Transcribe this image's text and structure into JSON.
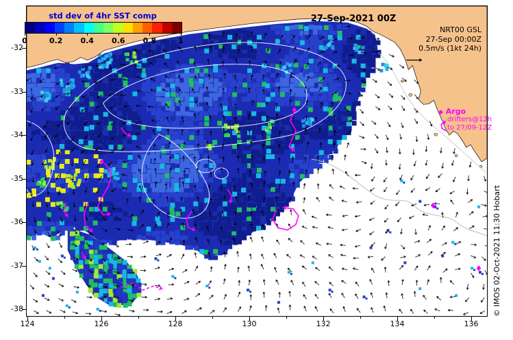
{
  "header": {
    "date_title": "27-Sep-2021 00Z"
  },
  "colorbar": {
    "title": "std dev of 4hr SST comp",
    "ticks": [
      "0",
      "0.2",
      "0.4",
      "0.6",
      "0.8",
      "1"
    ],
    "colors": [
      "#000080",
      "#0000c0",
      "#0000ff",
      "#0040ff",
      "#0080ff",
      "#00c0ff",
      "#00ffff",
      "#40ff90",
      "#80ff60",
      "#c0ff20",
      "#ffe000",
      "#ffa000",
      "#ff6000",
      "#ff2000",
      "#c00000",
      "#800000"
    ]
  },
  "info_block": {
    "line1": "NRT00 GSL",
    "line2": "27-Sep 00:00Z",
    "line3": "0.5m/s (1kt 24h)"
  },
  "legend": {
    "argo_label": "Argo",
    "drifters_label_1": "drifters@12h",
    "drifters_label_2": "to 27/09-12Z"
  },
  "credit": "© IMOS 02-Oct-2021 11:30 Hobart",
  "axes": {
    "x_ticks": [
      "124",
      "126",
      "128",
      "130",
      "132",
      "134",
      "136"
    ],
    "y_ticks": [
      "-32",
      "-33",
      "-34",
      "-35",
      "-36",
      "-37",
      "-38"
    ]
  },
  "colors": {
    "land": "#f6c28b",
    "magenta": "#ff00ff",
    "contour": "#ffffff",
    "vectors": "#000000",
    "title_blue": "#0000cd",
    "front_gray": "#bdbdbd"
  },
  "chart_data": {
    "type": "heatmap",
    "title": "std dev of 4hr SST comp",
    "valid_time": "27-Sep-2021 00Z",
    "x_axis": {
      "ticks": [
        124,
        126,
        128,
        130,
        132,
        134,
        136
      ],
      "range": [
        123.95,
        136.45
      ]
    },
    "y_axis": {
      "ticks": [
        -32,
        -33,
        -34,
        -35,
        -36,
        -37,
        -38
      ],
      "range": [
        -38.15,
        -31.0
      ]
    },
    "color_scale": {
      "min": 0,
      "max": 1,
      "ticks": [
        0,
        0.2,
        0.4,
        0.6,
        0.8,
        1
      ],
      "palette": "blue-cyan-green-yellow-orange-red"
    },
    "overlays": [
      {
        "type": "current_vectors",
        "source": "NRT00 GSL",
        "valid": "27-Sep 00:00Z",
        "scale": "0.5m/s (1kt 24h)",
        "color": "#000000"
      },
      {
        "type": "argo_floats",
        "marker": "diamond",
        "color": "#ff00ff"
      },
      {
        "type": "drifter_tracks",
        "interval": "drifters@12h",
        "until": "to 27/09-12Z",
        "color": "#ff00ff"
      },
      {
        "type": "sea_level_contours",
        "color": "#ffffff"
      },
      {
        "type": "front_line",
        "color": "#bdbdbd"
      }
    ]
  }
}
